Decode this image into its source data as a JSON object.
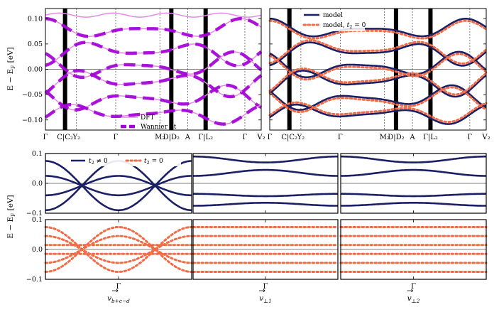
{
  "colors": {
    "dft": "#e589e8",
    "wannier": "#a100d6",
    "model": "#1b1f63",
    "model_t2zero": "#f26b46",
    "kmarker": "#000000"
  },
  "chart_data": [
    {
      "id": "top-left",
      "type": "line",
      "ylabel": "E − E_F [eV]",
      "ylim": [
        -0.12,
        0.12
      ],
      "yticks": [
        -0.1,
        -0.05,
        0.0,
        0.05,
        0.1
      ],
      "ytick_labels": [
        "−0.10",
        "−0.05",
        "0.00",
        "0.05",
        "0.10"
      ],
      "kpath": [
        {
          "label": "Γ",
          "x": 0.0
        },
        {
          "label": "C|C₂",
          "x": 0.12
        },
        {
          "label": "Y₂",
          "x": 0.19
        },
        {
          "label": "Γ",
          "x": 0.43
        },
        {
          "label": "M₂",
          "x": 0.7
        },
        {
          "label": "D|D₂",
          "x": 0.77
        },
        {
          "label": "A",
          "x": 0.87
        },
        {
          "label": "Γ|L₂",
          "x": 0.98
        },
        {
          "label": "Γ",
          "x": 1.22
        },
        {
          "label": "V₂",
          "x": 1.32
        }
      ],
      "thick_markers": [
        "C|C₂",
        "D|D₂",
        "Γ|L₂"
      ],
      "legend": [
        "DFT",
        "Wannier fit"
      ],
      "series": [
        {
          "name": "DFT",
          "style": "solid"
        },
        {
          "name": "Wannier fit",
          "style": "dashed"
        }
      ]
    },
    {
      "id": "top-right",
      "type": "line",
      "ylim": [
        -0.12,
        0.12
      ],
      "yticks": [
        -0.1,
        -0.05,
        0.0,
        0.05,
        0.1
      ],
      "kpath": [
        {
          "label": "Γ",
          "x": 0.0
        },
        {
          "label": "C|C₂",
          "x": 0.12
        },
        {
          "label": "Y₂",
          "x": 0.19
        },
        {
          "label": "Γ",
          "x": 0.43
        },
        {
          "label": "M₂",
          "x": 0.7
        },
        {
          "label": "D|D₂",
          "x": 0.77
        },
        {
          "label": "A",
          "x": 0.87
        },
        {
          "label": "Γ|L₂",
          "x": 0.98
        },
        {
          "label": "Γ",
          "x": 1.22
        },
        {
          "label": "V₂",
          "x": 1.32
        }
      ],
      "thick_markers": [
        "C|C₂",
        "D|D₂",
        "Γ|L₂"
      ],
      "legend": [
        "model",
        "model, t₂ = 0"
      ],
      "series": [
        {
          "name": "model",
          "style": "solid"
        },
        {
          "name": "model, t₂ = 0",
          "style": "dotted"
        }
      ]
    },
    {
      "id": "bottom-grid",
      "type": "line",
      "ylabel": "E − E_F [eV]",
      "ylim": [
        -0.1,
        0.1
      ],
      "yticks": [
        -0.1,
        0.0,
        0.1
      ],
      "ytick_labels": [
        "−0.1",
        "0.0",
        "0.1"
      ],
      "columns": [
        "v⃗_{b⃗+c⃗−d⃗}",
        "v⃗_⊥1",
        "v⃗_⊥2"
      ],
      "column_xtick": "Γ",
      "rows": [
        "t₂ ≠ 0",
        "t₂ = 0"
      ],
      "legend": [
        "t₂ ≠ 0",
        "t₂ = 0"
      ],
      "bands_flat_t2zero": [
        0.075,
        0.045,
        0.015,
        -0.015,
        -0.045,
        -0.075
      ],
      "bands_dispersive_center": [
        -0.09,
        0.075
      ]
    }
  ],
  "labels": {
    "ylabel_main": "E − E",
    "ylabel_sub": "F",
    "ylabel_unit": " [eV]",
    "legend_dft": "DFT",
    "legend_wannier": "Wannier fit",
    "legend_model": "model",
    "legend_model_t2": "model, ",
    "legend_t2_eq": " = 0",
    "legend_t2_neq": " ≠ 0",
    "t": "t",
    "t_sub": "2",
    "v": "v",
    "col1_sub": "b+c−d",
    "col2_sub": "⊥1",
    "col3_sub": "⊥2",
    "gamma": "Γ"
  }
}
